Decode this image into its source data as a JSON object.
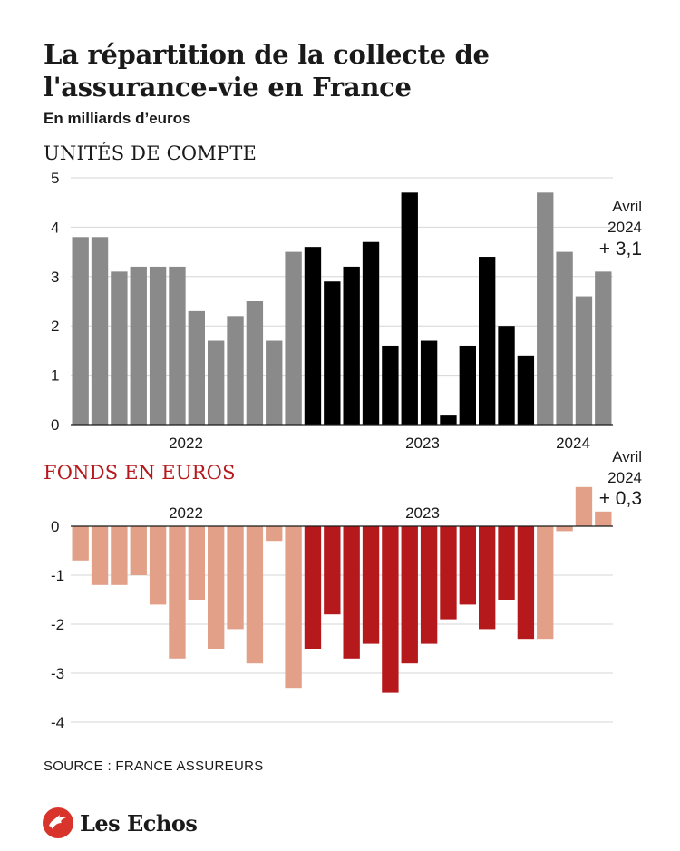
{
  "header": {
    "title": "La répartition de la collecte de l'assurance-vie en France",
    "subtitle": "En milliards d’euros"
  },
  "source": "SOURCE : FRANCE ASSUREURS",
  "brand": {
    "name": "Les Echos",
    "color": "#d9342b"
  },
  "chart_data": [
    {
      "type": "bar",
      "title": "UNITÉS DE COMPTE",
      "ylim": [
        0,
        5
      ],
      "yticks": [
        "0",
        "1",
        "2",
        "3",
        "4",
        "5"
      ],
      "grid": true,
      "year_labels": [
        "2022",
        "2023",
        "2024"
      ],
      "annotation": {
        "line1": "Avril",
        "line2": "2024",
        "value": "+ 3,1"
      },
      "colors": [
        "#8a8a8a",
        "#000000"
      ],
      "values": [
        3.8,
        3.8,
        3.1,
        3.2,
        3.2,
        3.2,
        2.3,
        1.7,
        2.2,
        2.5,
        1.7,
        3.5,
        3.6,
        2.9,
        3.2,
        3.7,
        1.6,
        4.7,
        1.7,
        0.2,
        1.6,
        3.4,
        2.0,
        1.4,
        4.7,
        3.5,
        2.6,
        3.1
      ],
      "color_index": [
        0,
        0,
        0,
        0,
        0,
        0,
        0,
        0,
        0,
        0,
        0,
        0,
        1,
        1,
        1,
        1,
        1,
        1,
        1,
        1,
        1,
        1,
        1,
        1,
        0,
        0,
        0,
        0
      ]
    },
    {
      "type": "bar",
      "title": "FONDS EN EUROS",
      "ylim": [
        -4,
        0.5
      ],
      "yticks": [
        "-4",
        "-3",
        "-2",
        "-1",
        "0"
      ],
      "grid": true,
      "year_labels": [
        "2022",
        "2023"
      ],
      "annotation": {
        "line1": "Avril",
        "line2": "2024",
        "value": "+ 0,3"
      },
      "colors": [
        "#e3a088",
        "#b5191c"
      ],
      "values": [
        -0.7,
        -1.2,
        -1.2,
        -1.0,
        -1.6,
        -2.7,
        -1.5,
        -2.5,
        -2.1,
        -2.8,
        -0.3,
        -3.3,
        -2.5,
        -1.8,
        -2.7,
        -2.4,
        -3.4,
        -2.8,
        -2.4,
        -1.9,
        -1.6,
        -2.1,
        -1.5,
        -2.3,
        -2.3,
        -0.1,
        0.8,
        0.3
      ],
      "color_index": [
        0,
        0,
        0,
        0,
        0,
        0,
        0,
        0,
        0,
        0,
        0,
        0,
        1,
        1,
        1,
        1,
        1,
        1,
        1,
        1,
        1,
        1,
        1,
        1,
        0,
        0,
        0,
        0
      ]
    }
  ]
}
